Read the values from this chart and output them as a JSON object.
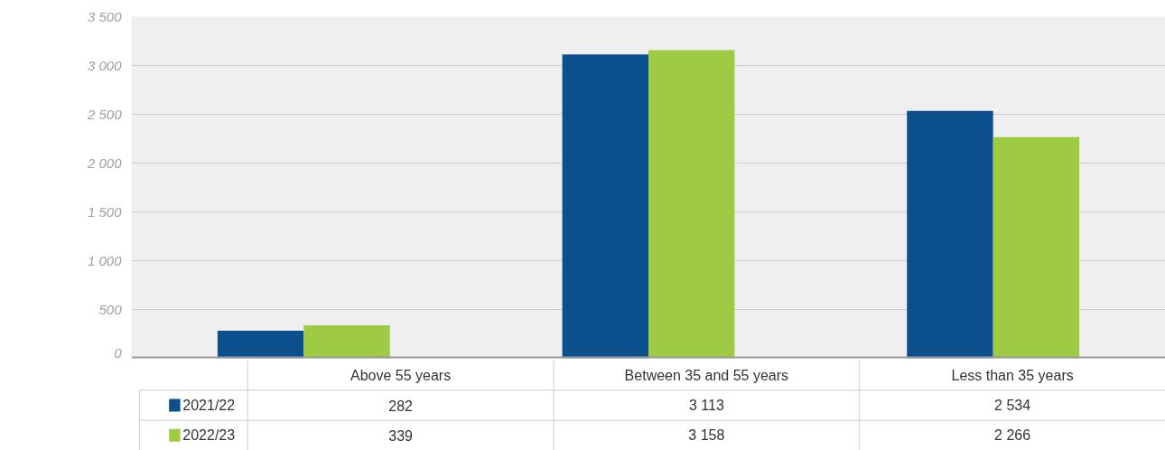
{
  "chart_data": {
    "type": "bar",
    "categories": [
      "Above 55 years",
      "Between 35 and 55 years",
      "Less than 35 years"
    ],
    "series": [
      {
        "name": "2021/22",
        "color": "#0b4f8c",
        "values": [
          282,
          3113,
          2534
        ],
        "value_labels": [
          "282",
          "3 113",
          "2 534"
        ]
      },
      {
        "name": "2022/23",
        "color": "#9ecb43",
        "values": [
          339,
          3158,
          2266
        ],
        "value_labels": [
          "339",
          "3 158",
          "2 266"
        ]
      }
    ],
    "ylim": [
      0,
      3500
    ],
    "yticks": [
      {
        "value": 0,
        "label": "0"
      },
      {
        "value": 500,
        "label": "500"
      },
      {
        "value": 1000,
        "label": "1 000"
      },
      {
        "value": 1500,
        "label": "1 500"
      },
      {
        "value": 2000,
        "label": "2 000"
      },
      {
        "value": 2500,
        "label": "2 500"
      },
      {
        "value": 3000,
        "label": "3 000"
      },
      {
        "value": 3500,
        "label": "3 500"
      }
    ],
    "grid": "y",
    "legend": "bottom"
  }
}
